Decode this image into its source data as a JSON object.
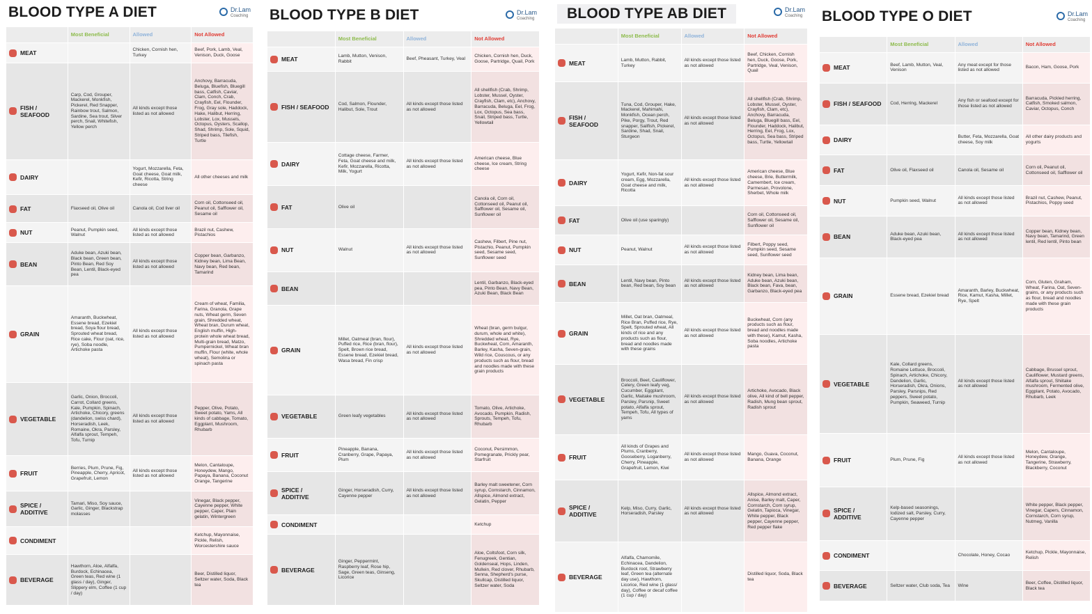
{
  "panels": [
    {
      "title": "BLOOD TYPE A DIET",
      "logo": {
        "name": "Dr.Lam",
        "tag": "Coaching"
      },
      "headers": [
        "Most Beneficial",
        "Allowed",
        "Not Allowed"
      ],
      "rows": [
        {
          "category": "MEAT",
          "cells": [
            null,
            "Chicken, Cornish hen, Turkey",
            "Beef, Pork, Lamb, Veal, Venison, Duck, Goose"
          ]
        },
        {
          "category": "FISH / SEAFOOD",
          "cells": [
            "Carp, Cod, Grouper, Mackerel, Monkfish, Pickerel, Red Snapper, Rainbow trout, Salmon, Sardine, Sea trout, Silver perch, Snail, Whitefish, Yellow perch",
            "All kinds except those listed as not allowed",
            "Anchovy, Barracuda, Beluga, Bluefish, Bluegill bass, Catfish, Caviar, Clam, Conch, Crab, Crayfish, Eel, Flounder, Frog, Gray sole, Haddock, Hake, Halibut, Herring, Lobster, Lox, Mussels, Octopus, Oysters, Scallop, Shad, Shrimp, Sole, Squid, Striped bass, Tilefish, Turtle"
          ]
        },
        {
          "category": "DAIRY",
          "cells": [
            null,
            "Yogurt, Mozzarella, Feta, Goat cheese, Goat milk, Kefir, Ricotta, String cheese",
            "All other cheeses and milk"
          ]
        },
        {
          "category": "FAT",
          "cells": [
            "Flaxseed oil, Olive oil",
            "Canola oil, Cod liver oil",
            "Corn oil, Cottonseed oil, Peanut oil, Safflower oil, Sesame oil"
          ]
        },
        {
          "category": "NUT",
          "cells": [
            "Peanut, Pumpkin seed, Walnut",
            "All kinds except those listed as not allowed",
            "Brazil nut, Cashew, Pistachios"
          ]
        },
        {
          "category": "BEAN",
          "cells": [
            "Aduke bean, Azuki bean, Black bean, Green bean, Pinto Bean, Red Soy Bean, Lentil, Black-eyed pea",
            "All kinds except those listed as not allowed",
            "Copper bean, Garbanzo, Kidney bean, Lima Bean, Navy bean, Red bean, Tamarind"
          ]
        },
        {
          "category": "GRAIN",
          "cells": [
            "Amaranth, Buckwheat, Essene bread, Ezekiel bread, Soya flour bread, Sprouted wheat bread, Rice cake, Flour (oat, rice, rye), Soba noodle, Artichoke pasta",
            "All kinds except those listed as not allowed",
            "Cream of wheat, Familia, Farina, Granola, Grape nuts, Wheat germ, Seven grain, Shredded wheat, Wheat bran, Durum wheat, English muffin, High-protein whole wheat bread, Multi-grain bread, Matzo, Pumpernickel, Wheat bran muffin, Flour (white, whole wheat), Semolina or spinach pasta"
          ]
        },
        {
          "category": "VEGETABLE",
          "cells": [
            "Garlic, Onion, Broccoli, Carrot, Collard greens, Kale, Pumpkin, Spinach, Artichoke, Chicory, greens (dandelion, swiss chard), Horseradish, Leek, Romaine, Okra, Parsley, Alfalfa sprout, Tempeh, Tofu, Turnip",
            "All kinds except those listed as not allowed",
            "Pepper, Olive, Potato, Sweet potato, Yams, All kinds of cabbage, Tomato, Eggplant, Mushroom, Rhubarb"
          ]
        },
        {
          "category": "FRUIT",
          "cells": [
            "Berries, Plum, Prune, Fig, Pineapple, Cherry, Apricot, Grapefruit, Lemon",
            "All kinds except those listed as not allowed",
            "Melon, Cantaloupe, Honeydew, Mango, Papaya, Banana, Coconut Orange, Tangerine"
          ]
        },
        {
          "category": "SPICE / ADDITIVE",
          "cells": [
            "Tamari, Miso, Soy sauce, Garlic, Ginger, Blackstrap molasses",
            null,
            "Vinegar, Black pepper, Cayenne pepper, White pepper, Caper, Plain gelatin, Wintergreen"
          ]
        },
        {
          "category": "CONDIMENT",
          "cells": [
            null,
            null,
            "Ketchup, Mayonnaise, Pickle, Relish, Worcestershire sauce"
          ]
        },
        {
          "category": "BEVERAGE",
          "cells": [
            "Hawthorn, Aloe, Alfalfa, Burdock, Echinacea, Green teas, Red wine (1 glass / day), Ginger, Slippery elm, Coffee (1 cup / day)",
            null,
            "Beer, Distilled liquor, Seltzer water, Soda, Black tea"
          ]
        }
      ]
    },
    {
      "title": "BLOOD TYPE B DIET",
      "logo": {
        "name": "Dr.Lam",
        "tag": "Coaching"
      },
      "headers": [
        "Most Beneficial",
        "Allowed",
        "Not Allowed"
      ],
      "rows": [
        {
          "category": "MEAT",
          "cells": [
            "Lamb, Mutton, Venison, Rabbit",
            "Beef, Pheasant, Turkey, Veal",
            "Chicken, Cornish hen, Duck, Goose, Partridge, Quail, Pork"
          ]
        },
        {
          "category": "FISH / SEAFOOD",
          "cells": [
            "Cod, Salmon, Flounder, Halibut, Sole, Trout",
            "All kinds except those listed as not allowed",
            "All shellfish (Crab, Shrimp, Lobster, Mussel, Oyster, Crayfish, Clam, etc), Anchovy, Barracuda, Beluga, Eel, Frog, Lox, Octopus, Sea bass, Snail, Striped bass, Turtle, Yellowtail"
          ]
        },
        {
          "category": "DAIRY",
          "cells": [
            "Cottage cheese, Farmer, Feta, Goat cheese and milk, Kefir, Mozzarella, Ricotta, Milk, Yogurt",
            "All kinds except those listed as not allowed",
            "American cheese, Blue cheese, Ice cream, String cheese"
          ]
        },
        {
          "category": "FAT",
          "cells": [
            "Olive oil",
            null,
            "Canola oil, Corn oil, Cottonseed oil, Peanut oil, Safflower oil, Sesame oil, Sunflower oil"
          ]
        },
        {
          "category": "NUT",
          "cells": [
            "Walnut",
            "All kinds except those listed as not allowed",
            "Cashew, Filbert, Pine nut, Pistachio, Peanut, Pumpkin seed, Sesame seed, Sunflower seed"
          ]
        },
        {
          "category": "BEAN",
          "cells": [
            null,
            null,
            "Lentil, Garbanzo, Black-eyed pea, Pinto Bean, Navy Bean, Azuki Bean, Black Bean"
          ]
        },
        {
          "category": "GRAIN",
          "cells": [
            "Millet, Oatmeal (bran, flour), Puffed rice, Rice (bran, flour), Spelt, Brown rice bread, Essene bread, Ezekiel bread, Wasa bread, Fin crisp",
            "All kinds except those listed as not allowed",
            "Wheat (bran, germ bulgur, durum, whole and white), Shredded wheat, Rye, Buckwheat, Corn, Amaranth, Barley, Kasha, Seven-grain, Wild rice, Couscous, or any products such as flour, bread and noodles made with these grain products"
          ]
        },
        {
          "category": "VEGETABLE",
          "cells": [
            "Green leafy vegetables",
            "All kinds except those listed as not allowed",
            "Tomato, Olive, Artichoke, Avocado, Pumpkin, Radish, Sprouts, Tempeh, Tofu, Rhubarb"
          ]
        },
        {
          "category": "FRUIT",
          "cells": [
            "Pineapple, Banana, Cranberry, Grape, Papaya, Plum",
            "All kinds except those listed as not allowed",
            "Coconut, Persimmon, Pomegranate, Prickly pear, Starfruit"
          ]
        },
        {
          "category": "SPICE / ADDITIVE",
          "cells": [
            "Ginger, Horseradish, Curry, Cayenne pepper",
            "All kinds except those listed as not allowed",
            "Barley malt sweetener, Corn syrup, Cornstarch, Cinnamon, Allspice, Almond extract, Gelatin, Pepper"
          ]
        },
        {
          "category": "CONDIMENT",
          "cells": [
            null,
            null,
            "Ketchup"
          ]
        },
        {
          "category": "BEVERAGE",
          "cells": [
            "Ginger, Peppermint, Raspberry leaf, Rose hip, Sage, Green teas, Ginseng, Licorice",
            null,
            "Aloe, Coltsfoot, Corn silk, Fenugreek, Gentian, Goldenseal, Hops, Linden, Mullein, Red clover, Rhubarb, Senna, Shepherd's purse, Skullcap, Distilled liquor, Seltzer water, Soda"
          ]
        }
      ]
    },
    {
      "title": "BLOOD TYPE AB DIET",
      "logo": {
        "name": "Dr.Lam",
        "tag": "Coaching"
      },
      "headers": [
        "Most Beneficial",
        "Allowed",
        "Not Allowed"
      ],
      "rows": [
        {
          "category": "MEAT",
          "cells": [
            "Lamb, Mutton, Rabbit, Turkey",
            "All kinds except those listed as not allowed",
            "Beef, Chicken, Cornish hen, Duck, Goose, Pork, Partridge, Veal, Venison, Quail"
          ]
        },
        {
          "category": "FISH / SEAFOOD",
          "cells": [
            "Tuna, Cod, Grouper, Hake, Mackerel, Mahimahi, Monkfish, Ocean perch, Pike, Porgy, Trout, Red snapper, Sailfish, Pickerel, Sardine, Shad, Snail, Sturgeon",
            "All kinds except those listed as not allowed",
            "All shellfish (Crab, Shrimp, Lobster, Mussel, Oyster, Crayfish, Clam, etc), Anchovy, Barracuda, Beluga, Bluegill bass, Eel, Flounder, Haddock, Halibut, Herring, Eel, Frog, Lox, Octopus, Sea bass, Striped bass, Turtle, Yellowtail"
          ]
        },
        {
          "category": "DAIRY",
          "cells": [
            "Yogurt, Kefir, Non-fat sour cream, Egg, Mozzarella, Goat cheese and milk, Ricotta",
            "All kinds except those listed as not allowed",
            "American cheese, Blue cheese, Brie, Buttermilk, Camembert, Ice cream, Parmesan, Provolone, Sherbet, Whole milk"
          ]
        },
        {
          "category": "FAT",
          "cells": [
            "Olive oil (use sparingly)",
            null,
            "Corn oil, Cottonseed oil, Safflower oil, Sesame oil, Sunflower oil"
          ]
        },
        {
          "category": "NUT",
          "cells": [
            "Peanut, Walnut",
            "All kinds except those listed as not allowed",
            "Filbert, Poppy seed, Pumpkin seed, Sesame seed, Sunflower seed"
          ]
        },
        {
          "category": "BEAN",
          "cells": [
            "Lentil, Navy bean, Pinto bean, Red bean, Soy bean",
            "All kinds except those listed as not allowed",
            "Kidney bean, Lima bean, Aduke bean, Azuki bean, Black bean, Fava, bean, Garbanzo, Black-eyed pea"
          ]
        },
        {
          "category": "GRAIN",
          "cells": [
            "Millet, Oat bran, Oatmeal, Rice Bran, Puffed rice, Rye, Spelt, Sprouted wheat, All kinds of rice and any products such as flour, bread and noodles made with these grains",
            "All kinds except those listed as not allowed",
            "Buckwheat, Corn (any products such as flour, bread and noodles made with these), Kamut, Kasha, Soba noodles, Artichoke pasta"
          ]
        },
        {
          "category": "VEGETABLE",
          "cells": [
            "Broccoli, Beet, Cauliflower, Celery, Green leafy veg, Cucumber, Eggplant, Garlic, Maitake mushroom, Parsley, Parsnip, Sweet potato, Alfalfa sprout, Tempeh, Tofu, All types of yams",
            "All kinds except those listed as not allowed",
            "Artichoke, Avocado, Black olive, All kind of bell pepper, Radish, Mung bean sprout, Radish sprout"
          ]
        },
        {
          "category": "FRUIT",
          "cells": [
            "All kinds of Grapes and Plums, Cranberry, Gooseberry, Loganberry, Cherry, Pineapple, Grapefruit, Lemon, Kiwi",
            "All kinds except those listed as not allowed",
            "Mango, Guava, Coconut, Banana, Orange"
          ]
        },
        {
          "category": "SPICE / ADDITIVE",
          "cells": [
            "Kelp, Miso, Curry, Garlic, Horseradish, Parsley",
            "All kinds except those listed as not allowed",
            "Allspice, Almond extract, Anise, Barley malt, Caper, Cornstarch, Corn syrup, Gelatin, Tapioca, Vinegar, White pepper, Black pepper, Cayenne pepper, Red pepper flake"
          ]
        },
        {
          "category": "BEVERAGE",
          "cells": [
            "Alfalfa, Chamomile, Echinacea, Dandelion, Burdock root, Strawberry leaf, Green tea (alternate day use), Hawthorn, Licorice, Red wine (1 glass/ day), Coffee or decaf coffee (1 cup / day)",
            null,
            "Distilled liquor, Soda, Black tea"
          ]
        }
      ]
    },
    {
      "title": "BLOOD TYPE O DIET",
      "logo": {
        "name": "Dr.Lam",
        "tag": "Coaching"
      },
      "headers": [
        "Most Beneficial",
        "Allowed",
        "Not Allowed"
      ],
      "rows": [
        {
          "category": "MEAT",
          "cells": [
            "Beef, Lamb, Mutton, Veal, Venison",
            "Any meat except for those listed as not allowed",
            "Bacon, Ham, Goose, Pork"
          ]
        },
        {
          "category": "FISH / SEAFOOD",
          "cells": [
            "Cod, Herring, Mackerel",
            "Any fish or seafood except for those listed as not allowed",
            "Barracuda, Pickled herring, Catfish, Smoked salmon, Caviar, Octopus, Conch"
          ]
        },
        {
          "category": "DAIRY",
          "cells": [
            null,
            "Butter, Feta, Mozzarella, Goat cheese, Soy milk",
            "All other dairy products and yogurts"
          ]
        },
        {
          "category": "FAT",
          "cells": [
            "Olive oil, Flaxseed oil",
            "Canola oil, Sesame oil",
            "Corn oil, Peanut oil, Cottonseed oil, Safflower oil"
          ]
        },
        {
          "category": "NUT",
          "cells": [
            "Pumpkin seed, Walnut",
            "All kinds except those listed as not allowed",
            "Brazil nut, Cashew, Peanut, Pistachios, Poppy seed"
          ]
        },
        {
          "category": "BEAN",
          "cells": [
            "Aduke bean, Azuki bean, Black-eyed pea",
            "All kinds except those listed as not allowed",
            "Copper bean, Kidney bean, Navy bean, Tamarind, Green lentil, Red lentil, Pinto bean"
          ]
        },
        {
          "category": "GRAIN",
          "cells": [
            "Essene bread, Ezekiel bread",
            "Amaranth, Barley, Buckwheat, Rice, Kamut, Kasha, Millet, Rye, Spelt",
            "Corn, Gluten, Graham, Wheat, Farina, Oat, Seven-grains, or any products such as flour, bread and noodles made with these grain products"
          ]
        },
        {
          "category": "VEGETABLE",
          "cells": [
            "Kale, Collard greens, Romaine Lettuce, Broccoli, Spinach, Artichoke, Chicory, Dandelion, Garlic, Horseradish, Okra, Onions, Parsley, Parsnips, Red peppers, Sweet potato, Pumpkin, Seaweed, Turnip",
            "All kinds except those listed as not allowed",
            "Cabbage, Brussel sprout, Cauliflower, Mustard greens, Alfalfa sprout, Shiitake mushroom, Fermented olive, Eggplant, Potato, Avocado, Rhubarb, Leek"
          ]
        },
        {
          "category": "FRUIT",
          "cells": [
            "Plum, Prune, Fig",
            "All kinds except those listed as not allowed",
            "Melon, Cantaloupe, Honeydew, Orange, Tangerine, Strawberry, Blackberry, Coconut"
          ]
        },
        {
          "category": "SPICE / ADDITIVE",
          "cells": [
            "Kelp-based seasonings, Iodized salt, Parsley, Curry, Cayenne pepper",
            null,
            "White pepper, Black pepper, Vinegar, Capers, Cinnamon, Cornstarch, Corn syrup, Nutmeg, Vanilla"
          ]
        },
        {
          "category": "CONDIMENT",
          "cells": [
            null,
            "Chocolate, Honey, Cocao",
            "Ketchup, Pickle, Mayonnaise, Relish"
          ]
        },
        {
          "category": "BEVERAGE",
          "cells": [
            "Seltzer water, Club soda, Tea",
            "Wine",
            "Beer, Coffee, Distilled liquor, Black tea"
          ]
        }
      ]
    }
  ]
}
